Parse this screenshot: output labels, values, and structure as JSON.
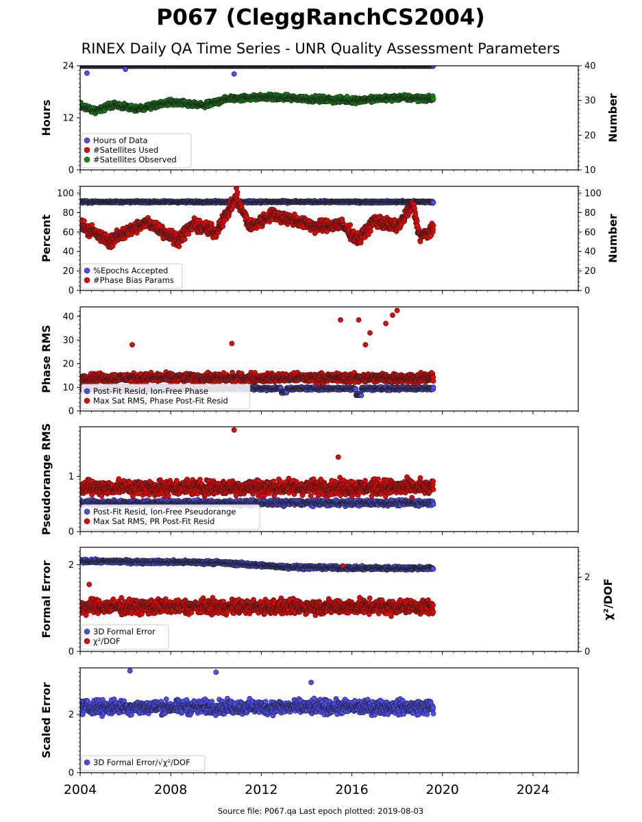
{
  "title": "P067 (CleggRanchCS2004)",
  "subtitle": "RINEX Daily QA Time Series - UNR Quality Assessment Parameters",
  "footer": "Source file: P067.qa Last epoch plotted: 2019-08-03",
  "colors": {
    "blue": "#4d4dff",
    "red": "#ee0000",
    "green": "#0b8a0b",
    "navy": "#0a0a40",
    "edge": "#222222"
  },
  "chart_data": [
    {
      "type": "scatter",
      "ylabel": "Hours",
      "ylabel_right": "Number",
      "ylim": [
        0,
        24
      ],
      "ylim_right": [
        10,
        40
      ],
      "yticks": [
        "0",
        "12",
        "24"
      ],
      "yticks_right": [
        "10",
        "20",
        "30",
        "40"
      ],
      "xlim": [
        2004.0,
        2026.0
      ],
      "legend_placement": "lower-left",
      "series": [
        {
          "name": "Hours of Data",
          "color": "blue",
          "axis": "left",
          "value": 23.9,
          "range": [
            23.3,
            24.0
          ],
          "outliers": [
            [
              2004.3,
              22.3
            ],
            [
              2010.8,
              22.1
            ],
            [
              2006.0,
              23.2
            ]
          ]
        },
        {
          "name": "#Satellites Used",
          "color": "red",
          "axis": "right",
          "value": 29,
          "range": [
            28,
            30
          ],
          "hidden_behind": true
        },
        {
          "name": "#Satellites Observed",
          "color": "green",
          "axis": "right",
          "anchors": [
            [
              2004.0,
              28.5
            ],
            [
              2004.6,
              27.0
            ],
            [
              2005.5,
              28.8
            ],
            [
              2006.5,
              27.5
            ],
            [
              2008.0,
              29.5
            ],
            [
              2009.5,
              28.5
            ],
            [
              2010.5,
              30.5
            ],
            [
              2012.0,
              31.0
            ],
            [
              2014.0,
              30.5
            ],
            [
              2016.0,
              30.0
            ],
            [
              2018.0,
              30.8
            ],
            [
              2019.6,
              30.5
            ]
          ],
          "spread": 1.2
        }
      ]
    },
    {
      "type": "scatter",
      "ylabel": "Percent",
      "ylabel_right": "Number",
      "ylim": [
        0,
        107
      ],
      "ylim_right": [
        0,
        107
      ],
      "yticks": [
        "0",
        "20",
        "40",
        "60",
        "80",
        "100"
      ],
      "yticks_right": [
        "0",
        "20",
        "40",
        "60",
        "80",
        "100"
      ],
      "xlim": [
        2004.0,
        2026.0
      ],
      "legend_placement": "lower-left",
      "series": [
        {
          "name": "%Epochs Accepted",
          "color": "blue",
          "axis": "left",
          "value": 91,
          "spread": 1.5
        },
        {
          "name": "#Phase Bias Params",
          "color": "red",
          "axis": "right",
          "anchors": [
            [
              2004.0,
              68
            ],
            [
              2005.3,
              50
            ],
            [
              2006.0,
              60
            ],
            [
              2007.0,
              70
            ],
            [
              2008.3,
              52
            ],
            [
              2009.0,
              68
            ],
            [
              2010.0,
              60
            ],
            [
              2010.9,
              95
            ],
            [
              2011.5,
              65
            ],
            [
              2012.5,
              78
            ],
            [
              2013.5,
              72
            ],
            [
              2014.5,
              65
            ],
            [
              2015.5,
              68
            ],
            [
              2016.3,
              52
            ],
            [
              2017.0,
              72
            ],
            [
              2018.0,
              65
            ],
            [
              2018.7,
              88
            ],
            [
              2019.0,
              55
            ],
            [
              2019.6,
              62
            ]
          ],
          "spread": 9,
          "outliers": [
            [
              2010.9,
              105
            ]
          ]
        }
      ]
    },
    {
      "type": "scatter",
      "ylabel": "Phase RMS",
      "ylim": [
        0,
        44
      ],
      "yticks": [
        "0",
        "10",
        "20",
        "30",
        "40"
      ],
      "xlim": [
        2004.0,
        2026.0
      ],
      "legend_placement": "lower-left",
      "series": [
        {
          "name": "Post-Fit Resid, Ion-Free Phase",
          "color": "blue",
          "value": 9.5,
          "spread": 1.0,
          "dips": [
            [
              2016.3,
              6.5
            ],
            [
              2013.0,
              7.5
            ]
          ]
        },
        {
          "name": "Max Sat RMS, Phase Post-Fit Resid",
          "color": "red",
          "value": 14,
          "spread": 2.8,
          "outliers": [
            [
              2006.3,
              28
            ],
            [
              2010.7,
              28.5
            ],
            [
              2015.5,
              38.5
            ],
            [
              2016.3,
              38.5
            ],
            [
              2017.5,
              37
            ],
            [
              2018.0,
              42.5
            ],
            [
              2017.8,
              40.5
            ],
            [
              2016.8,
              33
            ],
            [
              2016.6,
              28
            ]
          ]
        }
      ]
    },
    {
      "type": "scatter",
      "ylabel": "Pseudorange RMS",
      "ylim": [
        0,
        1.9
      ],
      "yticks": [
        "0",
        "1"
      ],
      "xlim": [
        2004.0,
        2026.0
      ],
      "legend_placement": "lower-left",
      "series": [
        {
          "name": "Post-Fit Resid, Ion-Free Pseudorange",
          "color": "blue",
          "value": 0.52,
          "spread": 0.07
        },
        {
          "name": "Max Sat RMS, PR Post-Fit Resid",
          "color": "red",
          "value": 0.8,
          "spread": 0.2,
          "outliers": [
            [
              2010.8,
              1.84
            ],
            [
              2015.4,
              1.35
            ]
          ]
        }
      ]
    },
    {
      "type": "scatter",
      "ylabel": "Formal Error",
      "ylabel_right": "χ²/DOF",
      "ylim": [
        0,
        2.4
      ],
      "ylim_right": [
        0,
        2.8
      ],
      "yticks": [
        "0",
        "2"
      ],
      "yticks_right": [
        "0",
        "2"
      ],
      "xlim": [
        2004.0,
        2026.0
      ],
      "legend_placement": "lower-left",
      "series": [
        {
          "name": "3D Formal Error",
          "color": "blue",
          "axis": "left",
          "anchors": [
            [
              2004.0,
              2.08
            ],
            [
              2010.0,
              2.05
            ],
            [
              2013.0,
              1.95
            ],
            [
              2016.0,
              1.92
            ],
            [
              2019.6,
              1.92
            ]
          ],
          "spread": 0.06
        },
        {
          "name": "χ²/DOF",
          "color": "red",
          "axis": "right",
          "value": 1.2,
          "spread": 0.28,
          "outliers": [
            [
              2015.6,
              2.3
            ],
            [
              2004.4,
              1.8
            ]
          ]
        }
      ]
    },
    {
      "type": "scatter",
      "ylabel": "Scaled Error",
      "ylim": [
        0,
        3.6
      ],
      "yticks": [
        "0",
        "2"
      ],
      "xlim": [
        2004.0,
        2026.0
      ],
      "xticks": [
        "2004",
        "2008",
        "2012",
        "2016",
        "2020",
        "2024"
      ],
      "legend_placement": "lower-left",
      "series": [
        {
          "name": "3D Formal Error/√χ²/DOF",
          "color": "blue",
          "value": 2.25,
          "spread": 0.35,
          "outliers": [
            [
              2006.2,
              3.5
            ],
            [
              2010.0,
              3.45
            ],
            [
              2014.2,
              3.1
            ]
          ]
        }
      ]
    }
  ]
}
